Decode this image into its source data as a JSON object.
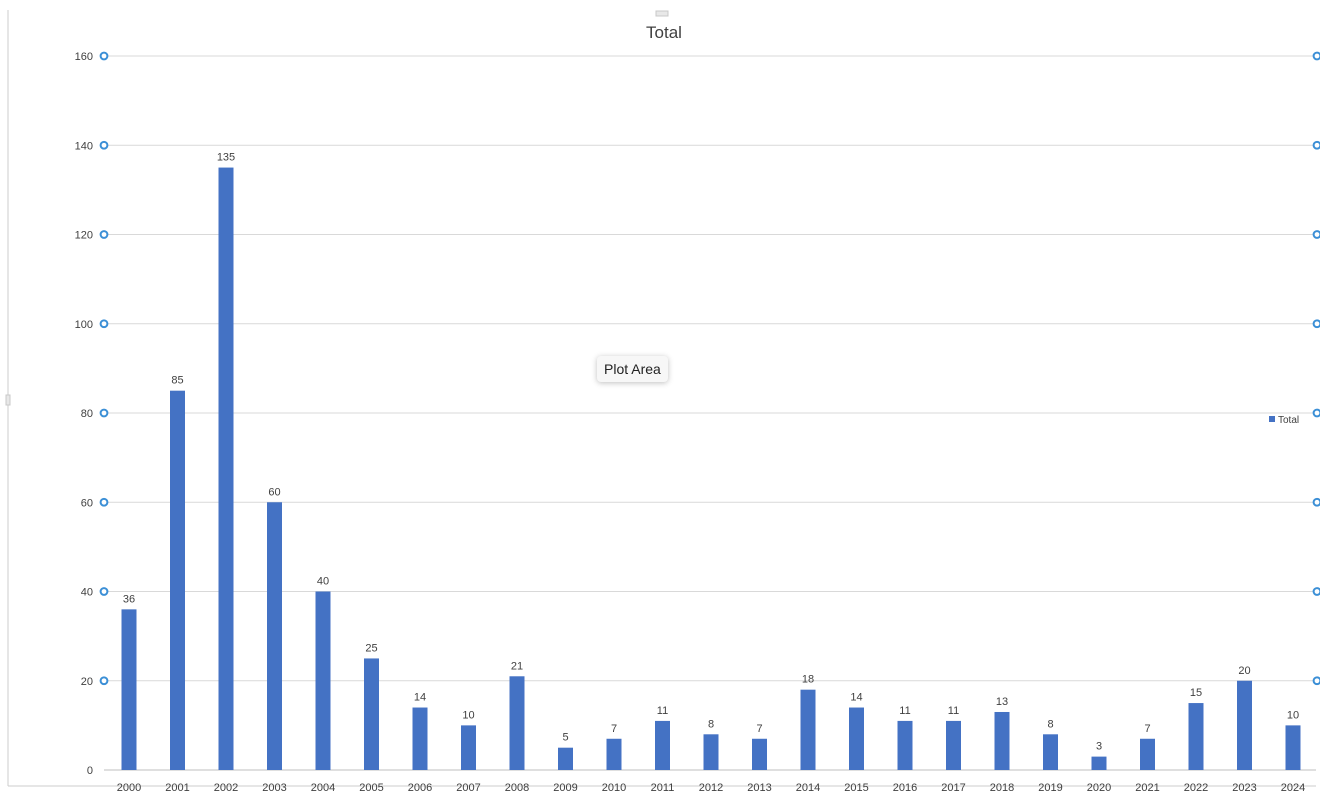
{
  "chart_data": {
    "type": "bar",
    "title": "Total",
    "categories": [
      "2000",
      "2001",
      "2002",
      "2003",
      "2004",
      "2005",
      "2006",
      "2007",
      "2008",
      "2009",
      "2010",
      "2011",
      "2012",
      "2013",
      "2014",
      "2015",
      "2016",
      "2017",
      "2018",
      "2019",
      "2020",
      "2021",
      "2022",
      "2023",
      "2024"
    ],
    "series": [
      {
        "name": "Total",
        "values": [
          36,
          85,
          135,
          60,
          40,
          25,
          14,
          10,
          21,
          5,
          7,
          11,
          8,
          7,
          18,
          14,
          11,
          11,
          13,
          8,
          3,
          7,
          15,
          20,
          10
        ]
      }
    ],
    "ylim": [
      0,
      160
    ],
    "yticks": [
      0,
      20,
      40,
      60,
      80,
      100,
      120,
      140,
      160
    ],
    "grid": true,
    "legend_position": "right",
    "data_labels": true,
    "colors": {
      "bar": "#4472C4",
      "handle": "#3b8fd6",
      "grid": "#d9d9d9"
    }
  },
  "tooltip": {
    "text": "Plot Area"
  }
}
